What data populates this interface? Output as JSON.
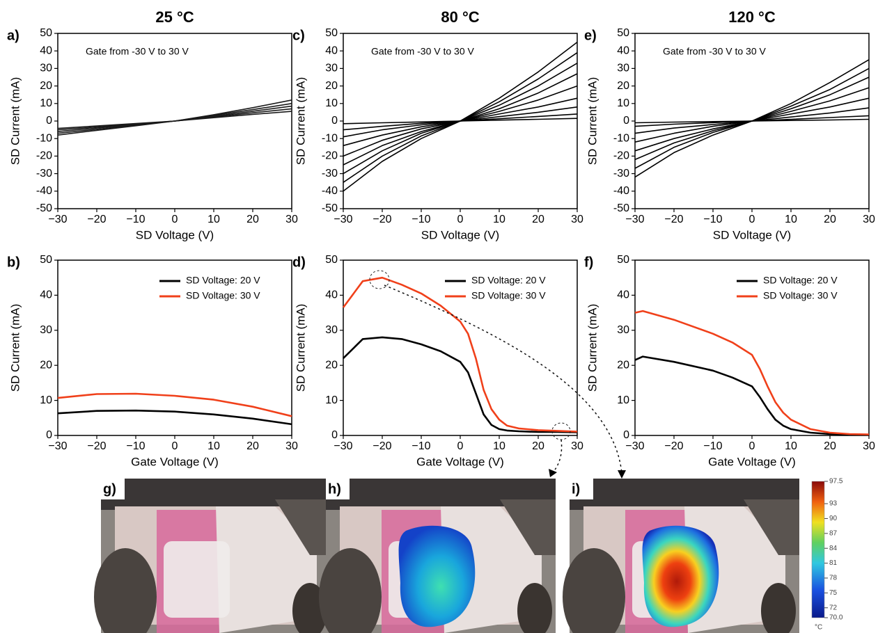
{
  "chart_data": [
    {
      "type": "line",
      "title": "25 °C",
      "panel_label": "a)",
      "annotation": "Gate from -30 V to 30 V",
      "xlabel": "SD Voltage (V)",
      "ylabel": "SD Current (mA)",
      "xlim": [
        -30,
        30
      ],
      "ylim": [
        -50,
        50
      ],
      "xticks": [
        {
          "value": -30,
          "label": "−30"
        },
        {
          "value": -20,
          "label": "−20"
        },
        {
          "value": -10,
          "label": "−10"
        },
        0,
        10,
        20,
        30
      ],
      "yticks": [
        -50,
        -40,
        -30,
        -20,
        -10,
        0,
        10,
        20,
        30,
        40,
        50
      ],
      "x": [
        -30,
        -20,
        -10,
        0,
        10,
        20,
        30
      ],
      "series": [
        {
          "color": "#1a1a1a",
          "values": [
            -8,
            -5.3,
            -2.7,
            0,
            3.6,
            7.6,
            12
          ]
        },
        {
          "color": "#1a1a1a",
          "values": [
            -7,
            -4.7,
            -2.3,
            0,
            3.2,
            6.5,
            10
          ]
        },
        {
          "color": "#1a1a1a",
          "values": [
            -6,
            -4,
            -2,
            0,
            2.7,
            5.6,
            8.5
          ]
        },
        {
          "color": "#1a1a1a",
          "values": [
            -5,
            -3.4,
            -1.7,
            0,
            2.3,
            4.7,
            7
          ]
        },
        {
          "color": "#1a1a1a",
          "values": [
            -4.2,
            -2.8,
            -1.4,
            0,
            1.9,
            3.8,
            5.5
          ]
        }
      ]
    },
    {
      "type": "line",
      "panel_label": "b)",
      "xlabel": "Gate Voltage (V)",
      "ylabel": "SD Current (mA)",
      "xlim": [
        -30,
        30
      ],
      "ylim": [
        0,
        50
      ],
      "xticks": [
        {
          "value": -30,
          "label": "−30"
        },
        {
          "value": -20,
          "label": "−20"
        },
        {
          "value": -10,
          "label": "−10"
        },
        0,
        10,
        20,
        30
      ],
      "yticks": [
        0,
        10,
        20,
        30,
        40,
        50
      ],
      "x": [
        -30,
        -20,
        -10,
        0,
        10,
        20,
        30
      ],
      "series": [
        {
          "name": "SD Voltage: 20 V",
          "color": "#000000",
          "values": [
            6.3,
            7,
            7.1,
            6.8,
            6,
            4.8,
            3.2
          ]
        },
        {
          "name": "SD Voltage: 30 V",
          "color": "#f0401a",
          "values": [
            10.7,
            11.8,
            11.9,
            11.3,
            10.2,
            8.2,
            5.5
          ]
        }
      ]
    },
    {
      "type": "line",
      "title": "80 °C",
      "panel_label": "c)",
      "annotation": "Gate from -30 V to 30 V",
      "xlabel": "SD Voltage (V)",
      "ylabel": "SD Current (mA)",
      "xlim": [
        -30,
        30
      ],
      "ylim": [
        -50,
        50
      ],
      "xticks": [
        {
          "value": -30,
          "label": "−30"
        },
        {
          "value": -20,
          "label": "−20"
        },
        {
          "value": -10,
          "label": "−10"
        },
        0,
        10,
        20,
        30
      ],
      "yticks": [
        -50,
        -40,
        -30,
        -20,
        -10,
        0,
        10,
        20,
        30,
        40,
        50
      ],
      "x": [
        -30,
        -20,
        -10,
        0,
        10,
        20,
        30
      ],
      "series": [
        {
          "color": "#000000",
          "values": [
            -40,
            -23,
            -10,
            0,
            13,
            28,
            45
          ]
        },
        {
          "color": "#000000",
          "values": [
            -35,
            -20,
            -8.5,
            0,
            11,
            24,
            39
          ]
        },
        {
          "color": "#000000",
          "values": [
            -30,
            -17,
            -7,
            0,
            9,
            20,
            33
          ]
        },
        {
          "color": "#000000",
          "values": [
            -25,
            -14,
            -6,
            0,
            7,
            16,
            27
          ]
        },
        {
          "color": "#000000",
          "values": [
            -20,
            -11,
            -4.5,
            0,
            5.5,
            12,
            20
          ]
        },
        {
          "color": "#000000",
          "values": [
            -14,
            -8,
            -3.3,
            0,
            4,
            8,
            13
          ]
        },
        {
          "color": "#000000",
          "values": [
            -9,
            -5,
            -2.2,
            0,
            2.5,
            5,
            8
          ]
        },
        {
          "color": "#000000",
          "values": [
            -5,
            -3,
            -1.3,
            0,
            1.3,
            2.6,
            4
          ]
        },
        {
          "color": "#000000",
          "values": [
            -1.5,
            -1,
            -0.5,
            0,
            0.5,
            1,
            1.5
          ]
        }
      ]
    },
    {
      "type": "line",
      "panel_label": "d)",
      "xlabel": "Gate Voltage (V)",
      "ylabel": "SD Current (mA)",
      "xlim": [
        -30,
        30
      ],
      "ylim": [
        0,
        50
      ],
      "xticks": [
        {
          "value": -30,
          "label": "−30"
        },
        {
          "value": -20,
          "label": "−20"
        },
        {
          "value": -10,
          "label": "−10"
        },
        0,
        10,
        20,
        30
      ],
      "yticks": [
        0,
        10,
        20,
        30,
        40,
        50
      ],
      "x": [
        -30,
        -25,
        -20,
        -15,
        -10,
        -5,
        0,
        2,
        4,
        6,
        8,
        10,
        12,
        15,
        20,
        25,
        30
      ],
      "series": [
        {
          "name": "SD Voltage: 20 V",
          "color": "#000000",
          "values": [
            22,
            27.5,
            28,
            27.5,
            26,
            24,
            21,
            18,
            12,
            6,
            3,
            1.8,
            1.4,
            1.2,
            1,
            1,
            0.9
          ]
        },
        {
          "name": "SD Voltage: 30 V",
          "color": "#f0401a",
          "values": [
            36.5,
            44,
            45,
            43,
            40.5,
            37,
            32.5,
            29,
            22,
            13,
            7.5,
            4.5,
            2.8,
            2,
            1.5,
            1.3,
            1.1
          ]
        }
      ]
    },
    {
      "type": "line",
      "title": "120 °C",
      "panel_label": "e)",
      "annotation": "Gate from -30 V to 30 V",
      "xlabel": "SD Voltage (V)",
      "ylabel": "SD Current (mA)",
      "xlim": [
        -30,
        30
      ],
      "ylim": [
        -50,
        50
      ],
      "xticks": [
        {
          "value": -30,
          "label": "−30"
        },
        {
          "value": -20,
          "label": "−20"
        },
        {
          "value": -10,
          "label": "−10"
        },
        0,
        10,
        20,
        30
      ],
      "yticks": [
        -50,
        -40,
        -30,
        -20,
        -10,
        0,
        10,
        20,
        30,
        40,
        50
      ],
      "x": [
        -30,
        -20,
        -10,
        0,
        10,
        20,
        30
      ],
      "series": [
        {
          "color": "#000000",
          "values": [
            -32,
            -18,
            -8,
            0,
            10,
            22,
            35
          ]
        },
        {
          "color": "#000000",
          "values": [
            -27,
            -15,
            -6.5,
            0,
            8.5,
            18,
            30
          ]
        },
        {
          "color": "#000000",
          "values": [
            -22,
            -12.5,
            -5.5,
            0,
            7,
            15,
            25
          ]
        },
        {
          "color": "#000000",
          "values": [
            -17,
            -10,
            -4.5,
            0,
            5.5,
            11.5,
            19
          ]
        },
        {
          "color": "#000000",
          "values": [
            -12,
            -7,
            -3,
            0,
            4,
            8,
            13
          ]
        },
        {
          "color": "#000000",
          "values": [
            -7,
            -4,
            -2,
            0,
            2.3,
            4.6,
            7.5
          ]
        },
        {
          "color": "#000000",
          "values": [
            -3,
            -1.8,
            -0.9,
            0,
            1,
            2,
            3
          ]
        },
        {
          "color": "#000000",
          "values": [
            -1,
            -0.6,
            -0.3,
            0,
            0.3,
            0.6,
            1
          ]
        }
      ]
    },
    {
      "type": "line",
      "panel_label": "f)",
      "xlabel": "Gate Voltage (V)",
      "ylabel": "SD Current (mA)",
      "xlim": [
        -30,
        30
      ],
      "ylim": [
        0,
        50
      ],
      "xticks": [
        {
          "value": -30,
          "label": "−30"
        },
        {
          "value": -20,
          "label": "−20"
        },
        {
          "value": -10,
          "label": "−10"
        },
        0,
        10,
        20,
        30
      ],
      "yticks": [
        0,
        10,
        20,
        30,
        40,
        50
      ],
      "x": [
        -30,
        -28,
        -20,
        -10,
        -5,
        0,
        2,
        4,
        6,
        8,
        10,
        15,
        20,
        25,
        30
      ],
      "series": [
        {
          "name": "SD Voltage: 20 V",
          "color": "#000000",
          "values": [
            21.5,
            22.5,
            21,
            18.5,
            16.5,
            14,
            11,
            7.5,
            4.5,
            2.8,
            1.8,
            0.8,
            0.4,
            0.3,
            0.2
          ]
        },
        {
          "name": "SD Voltage: 30 V",
          "color": "#f0401a",
          "values": [
            35,
            35.5,
            33,
            29,
            26.5,
            23,
            19,
            14,
            9.5,
            6.5,
            4.5,
            1.8,
            0.8,
            0.4,
            0.3
          ]
        }
      ]
    }
  ],
  "photos": [
    {
      "label": "g)"
    },
    {
      "label": "h)"
    },
    {
      "label": "i)"
    }
  ],
  "colorbar": {
    "lim": [
      70,
      97.5
    ],
    "unit": "°C",
    "ticks": [
      97.5,
      93,
      90,
      87,
      84,
      81,
      78,
      75,
      72,
      {
        "value": 70,
        "label": "70.0"
      }
    ]
  }
}
